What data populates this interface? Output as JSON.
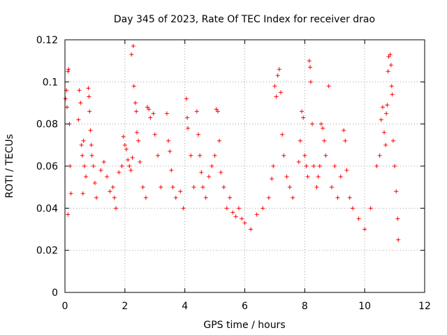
{
  "chart_data": {
    "type": "scatter",
    "title": "Day 345 of 2023, Rate Of TEC Index for receiver drao",
    "xlabel": "GPS time / hours",
    "ylabel": "ROTI / TECUs",
    "xlim": [
      0,
      12
    ],
    "ylim": [
      0,
      0.12
    ],
    "xticks": [
      "0",
      "2",
      "4",
      "6",
      "8",
      "10",
      "12"
    ],
    "yticks": [
      "0",
      "0.02",
      "0.04",
      "0.06",
      "0.08",
      "0.1",
      "0.12"
    ],
    "grid": true,
    "marker": "+",
    "color": "#ff0000",
    "series": [
      {
        "points": [
          [
            0.02,
            0.092
          ],
          [
            0.05,
            0.096
          ],
          [
            0.07,
            0.088
          ],
          [
            0.1,
            0.105
          ],
          [
            0.12,
            0.106
          ],
          [
            0.15,
            0.08
          ],
          [
            0.17,
            0.06
          ],
          [
            0.2,
            0.047
          ],
          [
            0.1,
            0.037
          ],
          [
            0.45,
            0.082
          ],
          [
            0.48,
            0.096
          ],
          [
            0.52,
            0.09
          ],
          [
            0.55,
            0.07
          ],
          [
            0.58,
            0.065
          ],
          [
            0.62,
            0.072
          ],
          [
            0.65,
            0.06
          ],
          [
            0.7,
            0.055
          ],
          [
            0.6,
            0.047
          ],
          [
            0.78,
            0.097
          ],
          [
            0.8,
            0.093
          ],
          [
            0.82,
            0.086
          ],
          [
            0.85,
            0.077
          ],
          [
            0.88,
            0.07
          ],
          [
            0.9,
            0.065
          ],
          [
            0.95,
            0.06
          ],
          [
            1.0,
            0.052
          ],
          [
            1.05,
            0.045
          ],
          [
            1.2,
            0.058
          ],
          [
            1.3,
            0.062
          ],
          [
            1.4,
            0.055
          ],
          [
            1.5,
            0.048
          ],
          [
            1.6,
            0.05
          ],
          [
            1.65,
            0.045
          ],
          [
            1.7,
            0.04
          ],
          [
            1.8,
            0.057
          ],
          [
            1.9,
            0.06
          ],
          [
            1.95,
            0.074
          ],
          [
            2.0,
            0.07
          ],
          [
            2.05,
            0.068
          ],
          [
            2.1,
            0.063
          ],
          [
            2.15,
            0.06
          ],
          [
            2.2,
            0.058
          ],
          [
            2.25,
            0.064
          ],
          [
            2.28,
            0.117
          ],
          [
            2.22,
            0.113
          ],
          [
            2.3,
            0.098
          ],
          [
            2.35,
            0.09
          ],
          [
            2.38,
            0.086
          ],
          [
            2.4,
            0.076
          ],
          [
            2.45,
            0.072
          ],
          [
            2.5,
            0.062
          ],
          [
            2.6,
            0.05
          ],
          [
            2.7,
            0.045
          ],
          [
            2.75,
            0.088
          ],
          [
            2.8,
            0.087
          ],
          [
            2.85,
            0.083
          ],
          [
            2.95,
            0.085
          ],
          [
            3.0,
            0.075
          ],
          [
            3.1,
            0.065
          ],
          [
            3.2,
            0.05
          ],
          [
            3.4,
            0.085
          ],
          [
            3.45,
            0.072
          ],
          [
            3.5,
            0.067
          ],
          [
            3.55,
            0.058
          ],
          [
            3.6,
            0.05
          ],
          [
            3.7,
            0.045
          ],
          [
            3.85,
            0.048
          ],
          [
            3.95,
            0.04
          ],
          [
            4.05,
            0.092
          ],
          [
            4.08,
            0.083
          ],
          [
            4.1,
            0.078
          ],
          [
            4.2,
            0.065
          ],
          [
            4.3,
            0.05
          ],
          [
            4.4,
            0.086
          ],
          [
            4.45,
            0.075
          ],
          [
            4.5,
            0.065
          ],
          [
            4.55,
            0.057
          ],
          [
            4.6,
            0.05
          ],
          [
            4.7,
            0.045
          ],
          [
            4.8,
            0.055
          ],
          [
            4.9,
            0.06
          ],
          [
            5.0,
            0.065
          ],
          [
            5.05,
            0.087
          ],
          [
            5.1,
            0.086
          ],
          [
            5.15,
            0.072
          ],
          [
            5.2,
            0.057
          ],
          [
            5.3,
            0.05
          ],
          [
            5.4,
            0.04
          ],
          [
            5.5,
            0.045
          ],
          [
            5.6,
            0.038
          ],
          [
            5.7,
            0.036
          ],
          [
            5.8,
            0.04
          ],
          [
            5.9,
            0.035
          ],
          [
            6.0,
            0.033
          ],
          [
            6.2,
            0.03
          ],
          [
            6.4,
            0.037
          ],
          [
            6.6,
            0.04
          ],
          [
            6.8,
            0.045
          ],
          [
            6.9,
            0.054
          ],
          [
            6.95,
            0.06
          ],
          [
            7.0,
            0.098
          ],
          [
            7.05,
            0.093
          ],
          [
            7.1,
            0.103
          ],
          [
            7.15,
            0.106
          ],
          [
            7.2,
            0.095
          ],
          [
            7.25,
            0.075
          ],
          [
            7.3,
            0.065
          ],
          [
            7.4,
            0.055
          ],
          [
            7.5,
            0.05
          ],
          [
            7.6,
            0.045
          ],
          [
            7.8,
            0.062
          ],
          [
            7.85,
            0.072
          ],
          [
            7.9,
            0.086
          ],
          [
            7.95,
            0.083
          ],
          [
            8.0,
            0.065
          ],
          [
            8.05,
            0.06
          ],
          [
            8.1,
            0.055
          ],
          [
            8.15,
            0.11
          ],
          [
            8.18,
            0.107
          ],
          [
            8.2,
            0.1
          ],
          [
            8.25,
            0.08
          ],
          [
            8.3,
            0.06
          ],
          [
            8.4,
            0.05
          ],
          [
            8.45,
            0.055
          ],
          [
            8.5,
            0.06
          ],
          [
            8.55,
            0.08
          ],
          [
            8.6,
            0.078
          ],
          [
            8.65,
            0.072
          ],
          [
            8.7,
            0.065
          ],
          [
            8.8,
            0.098
          ],
          [
            8.9,
            0.05
          ],
          [
            9.0,
            0.06
          ],
          [
            9.1,
            0.045
          ],
          [
            9.2,
            0.055
          ],
          [
            9.3,
            0.077
          ],
          [
            9.35,
            0.072
          ],
          [
            9.4,
            0.058
          ],
          [
            9.5,
            0.045
          ],
          [
            9.6,
            0.04
          ],
          [
            9.8,
            0.035
          ],
          [
            10.0,
            0.03
          ],
          [
            10.2,
            0.04
          ],
          [
            10.4,
            0.06
          ],
          [
            10.5,
            0.065
          ],
          [
            10.55,
            0.082
          ],
          [
            10.6,
            0.088
          ],
          [
            10.65,
            0.076
          ],
          [
            10.7,
            0.07
          ],
          [
            10.72,
            0.085
          ],
          [
            10.75,
            0.089
          ],
          [
            10.78,
            0.105
          ],
          [
            10.8,
            0.112
          ],
          [
            10.85,
            0.113
          ],
          [
            10.88,
            0.108
          ],
          [
            10.9,
            0.098
          ],
          [
            10.92,
            0.094
          ],
          [
            10.95,
            0.072
          ],
          [
            11.0,
            0.06
          ],
          [
            11.05,
            0.048
          ],
          [
            11.1,
            0.035
          ],
          [
            11.12,
            0.025
          ]
        ]
      }
    ]
  }
}
